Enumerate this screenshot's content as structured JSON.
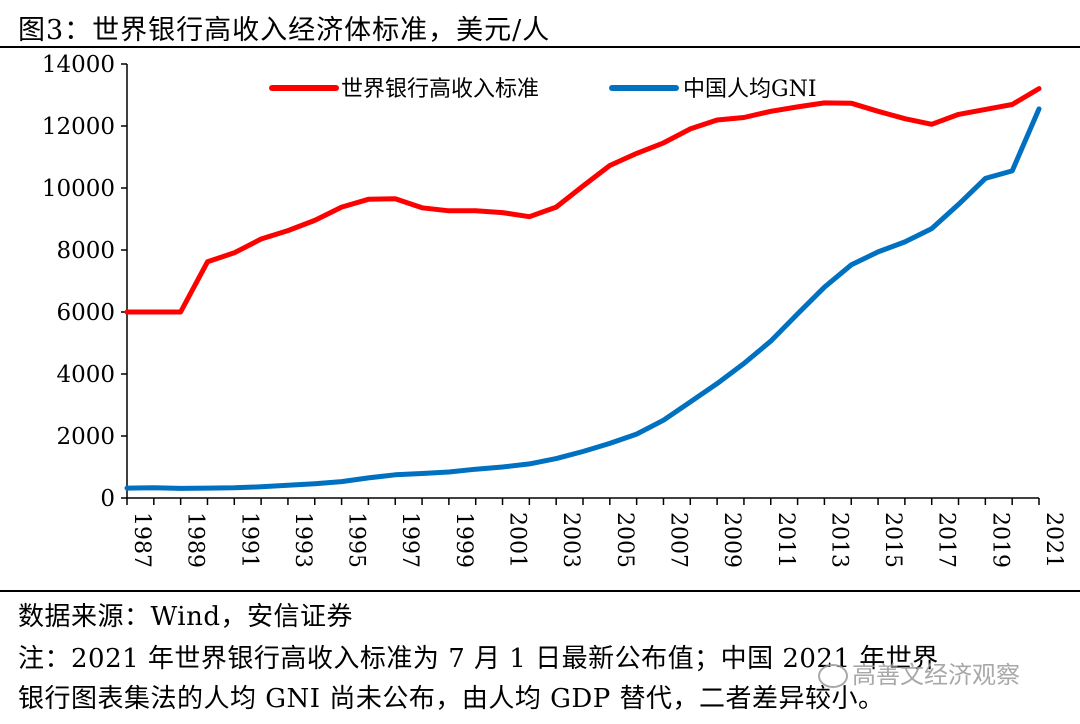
{
  "header": {
    "title": "图3：世界银行高收入经济体标准，美元/人"
  },
  "chart_data": {
    "type": "line",
    "title": "图3：世界银行高收入经济体标准，美元/人",
    "xlabel": "",
    "ylabel": "",
    "x": [
      1987,
      1988,
      1989,
      1990,
      1991,
      1992,
      1993,
      1994,
      1995,
      1996,
      1997,
      1998,
      1999,
      2000,
      2001,
      2002,
      2003,
      2004,
      2005,
      2006,
      2007,
      2008,
      2009,
      2010,
      2011,
      2012,
      2013,
      2014,
      2015,
      2016,
      2017,
      2018,
      2019,
      2020,
      2021
    ],
    "x_tick_labels": [
      "1987",
      "1989",
      "1991",
      "1993",
      "1995",
      "1997",
      "1999",
      "2001",
      "2003",
      "2005",
      "2007",
      "2009",
      "2011",
      "2013",
      "2015",
      "2017",
      "2019",
      "2021"
    ],
    "ylim": [
      0,
      14000
    ],
    "y_tick_labels": [
      "0",
      "2000",
      "4000",
      "6000",
      "8000",
      "10000",
      "12000",
      "14000"
    ],
    "grid": false,
    "legend_position": "top",
    "series": [
      {
        "name": "世界银行高收入标准",
        "color": "#ff0000",
        "values": [
          6000,
          6000,
          6000,
          7620,
          7910,
          8355,
          8626,
          8955,
          9385,
          9636,
          9655,
          9360,
          9265,
          9265,
          9205,
          9075,
          9385,
          10065,
          10725,
          11115,
          11455,
          11905,
          12195,
          12275,
          12475,
          12615,
          12745,
          12735,
          12475,
          12235,
          12055,
          12375,
          12535,
          12695,
          13205
        ]
      },
      {
        "name": "中国人均GNI",
        "color": "#0070c0",
        "values": [
          320,
          330,
          310,
          320,
          330,
          360,
          410,
          460,
          530,
          650,
          750,
          790,
          840,
          930,
          1000,
          1100,
          1270,
          1500,
          1760,
          2060,
          2510,
          3100,
          3690,
          4340,
          5060,
          5940,
          6800,
          7520,
          7940,
          8260,
          8690,
          9470,
          10310,
          10550,
          12551
        ]
      }
    ]
  },
  "footer": {
    "source": "数据来源：Wind，安信证券",
    "note_line1": "注：2021 年世界银行高收入标准为 7 月 1 日最新公布值；中国 2021 年世界",
    "note_line2": "银行图表集法的人均 GNI 尚未公布，由人均 GDP 替代，二者差异较小。"
  },
  "watermark": {
    "text": "高善文经济观察"
  }
}
